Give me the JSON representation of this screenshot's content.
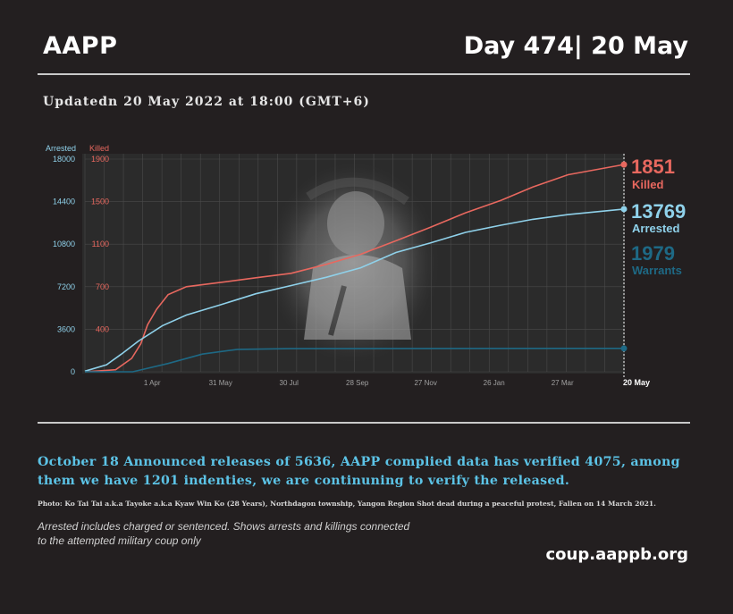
{
  "header": {
    "brand": "AAPP",
    "day": "Day 474| 20 May",
    "updated": "Updatedn 20 May 2022 at 18:00 (GMT+6)"
  },
  "colors": {
    "killed": "#e8685f",
    "arrested": "#8fd1ea",
    "warrants": "#1e6985",
    "background": "#231f20"
  },
  "chart_data": {
    "type": "line",
    "left_axis": {
      "label": "Arrested",
      "ticks": [
        0,
        3600,
        7200,
        10800,
        14400,
        18000
      ],
      "range": [
        0,
        18000
      ]
    },
    "right_axis": {
      "label": "Killed",
      "ticks": [
        400,
        700,
        1100,
        1500,
        1900
      ],
      "range": [
        0,
        1900
      ]
    },
    "x_ticks": [
      "1 Apr",
      "31 May",
      "30 Jul",
      "28 Sep",
      "27 Nov",
      "26 Jan",
      "27 Mar",
      "20 May"
    ],
    "x_range": [
      "2021-02-01",
      "2022-05-20"
    ],
    "grid": true,
    "series": [
      {
        "name": "Killed",
        "axis": "right",
        "value_label": "1851",
        "label": "Killed",
        "points": [
          [
            "2021-02-01",
            0
          ],
          [
            "2021-02-28",
            18
          ],
          [
            "2021-03-14",
            120
          ],
          [
            "2021-03-22",
            250
          ],
          [
            "2021-03-28",
            420
          ],
          [
            "2021-04-05",
            560
          ],
          [
            "2021-04-15",
            690
          ],
          [
            "2021-05-01",
            760
          ],
          [
            "2021-06-01",
            800
          ],
          [
            "2021-07-01",
            840
          ],
          [
            "2021-08-01",
            880
          ],
          [
            "2021-09-01",
            960
          ],
          [
            "2021-10-01",
            1050
          ],
          [
            "2021-11-01",
            1170
          ],
          [
            "2021-12-01",
            1290
          ],
          [
            "2022-01-01",
            1420
          ],
          [
            "2022-02-01",
            1530
          ],
          [
            "2022-03-01",
            1650
          ],
          [
            "2022-04-01",
            1760
          ],
          [
            "2022-05-20",
            1851
          ]
        ]
      },
      {
        "name": "Arrested",
        "axis": "left",
        "value_label": "13769",
        "label": "Arrested",
        "points": [
          [
            "2021-02-01",
            50
          ],
          [
            "2021-02-20",
            600
          ],
          [
            "2021-03-05",
            1500
          ],
          [
            "2021-03-20",
            2600
          ],
          [
            "2021-04-10",
            3900
          ],
          [
            "2021-05-01",
            4800
          ],
          [
            "2021-06-01",
            5700
          ],
          [
            "2021-07-01",
            6600
          ],
          [
            "2021-08-01",
            7300
          ],
          [
            "2021-09-01",
            8000
          ],
          [
            "2021-10-01",
            8800
          ],
          [
            "2021-11-01",
            10100
          ],
          [
            "2021-12-01",
            10900
          ],
          [
            "2022-01-01",
            11800
          ],
          [
            "2022-02-01",
            12400
          ],
          [
            "2022-03-01",
            12900
          ],
          [
            "2022-04-01",
            13300
          ],
          [
            "2022-05-20",
            13769
          ]
        ]
      },
      {
        "name": "Warrants",
        "axis": "left",
        "value_label": "1979",
        "label": "Warrants",
        "points": [
          [
            "2021-02-01",
            0
          ],
          [
            "2021-03-15",
            0
          ],
          [
            "2021-04-15",
            700
          ],
          [
            "2021-05-15",
            1500
          ],
          [
            "2021-06-15",
            1900
          ],
          [
            "2021-08-01",
            1960
          ],
          [
            "2022-05-20",
            1979
          ]
        ]
      }
    ]
  },
  "headline": "October 18 Announced releases of 5636, AAPP complied data has verified 4075, among them we have 1201 indenties, we are continuning to verify the released.",
  "photo_note": "Photo: Ko Tai Tai a.k.a Tayoke a.k.a Kyaw Win Ko (28 Years), Northdagon township, Yangon Region Shot dead during a peaceful protest, Fallen on 14 March 2021.",
  "note": "Arrested includes charged or sentenced. Shows arrests and killings connected to the attempted military coup only",
  "site": "coup.aappb.org"
}
